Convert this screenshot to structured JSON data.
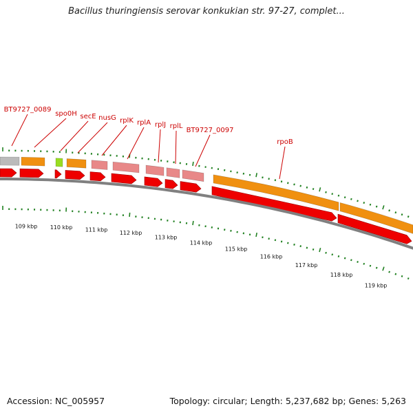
{
  "title": "Bacillus thuringiensis serovar konkukian str. 97-27, complet...",
  "accession": "Accession: NC_005957",
  "summary": "Topology: circular; Length: 5,237,682 bp; Genes: 5,263",
  "colors": {
    "gene_label": "#cc0000",
    "tick": "#208020",
    "backbone": "#808080",
    "cds_arrow": "#ee0000",
    "orange_feature": "#f09010",
    "pink_feature": "#e88888",
    "grey_feature": "#bbbbbb",
    "lime_feature": "#99dd22"
  },
  "gene_labels": [
    {
      "name": "BT9727_0089"
    },
    {
      "name": "spo0H"
    },
    {
      "name": "secE"
    },
    {
      "name": "nusG"
    },
    {
      "name": "rplK"
    },
    {
      "name": "rplA"
    },
    {
      "name": "rplJ"
    },
    {
      "name": "rplL"
    },
    {
      "name": "BT9727_0097"
    },
    {
      "name": "rpoB"
    }
  ],
  "kbp_labels": [
    "109 kbp",
    "110 kbp",
    "111 kbp",
    "112 kbp",
    "113 kbp",
    "114 kbp",
    "115 kbp",
    "116 kbp",
    "117 kbp",
    "118 kbp",
    "119 kbp"
  ]
}
